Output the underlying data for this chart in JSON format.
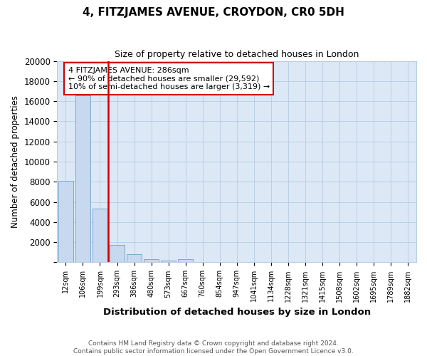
{
  "title": "4, FITZJAMES AVENUE, CROYDON, CR0 5DH",
  "subtitle": "Size of property relative to detached houses in London",
  "xlabel": "Distribution of detached houses by size in London",
  "ylabel": "Number of detached properties",
  "categories": [
    "12sqm",
    "106sqm",
    "199sqm",
    "293sqm",
    "386sqm",
    "480sqm",
    "573sqm",
    "667sqm",
    "760sqm",
    "854sqm",
    "947sqm",
    "1041sqm",
    "1134sqm",
    "1228sqm",
    "1321sqm",
    "1415sqm",
    "1508sqm",
    "1602sqm",
    "1695sqm",
    "1789sqm",
    "1882sqm"
  ],
  "values": [
    8100,
    16600,
    5300,
    1750,
    780,
    320,
    180,
    330,
    0,
    0,
    0,
    0,
    0,
    0,
    0,
    0,
    0,
    0,
    0,
    0,
    0
  ],
  "bar_color": "#c8d8ee",
  "bar_edge_color": "#7aaad0",
  "vline_color": "#cc0000",
  "annotation_text": "4 FITZJAMES AVENUE: 286sqm\n← 90% of detached houses are smaller (29,592)\n10% of semi-detached houses are larger (3,319) →",
  "annotation_box_color": "#ffffff",
  "annotation_box_edge": "#cc0000",
  "footer": "Contains HM Land Registry data © Crown copyright and database right 2024.\nContains public sector information licensed under the Open Government Licence v3.0.",
  "fig_bg_color": "#ffffff",
  "plot_bg_color": "#dce8f5",
  "ylim": [
    0,
    20000
  ],
  "yticks": [
    0,
    2000,
    4000,
    6000,
    8000,
    10000,
    12000,
    14000,
    16000,
    18000,
    20000
  ]
}
